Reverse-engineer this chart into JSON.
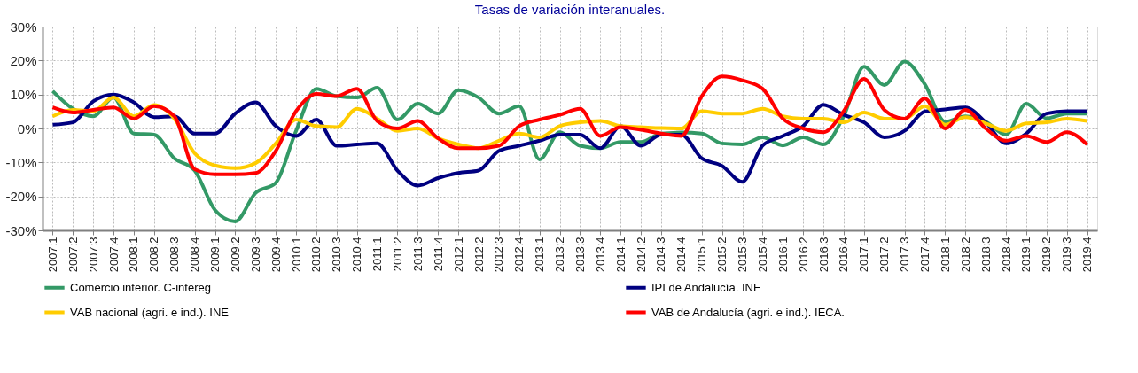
{
  "chart_data": {
    "type": "line",
    "title": "Tasas de variación interanuales.",
    "categories": [
      "2007:1",
      "2007:2",
      "2007:3",
      "2007:4",
      "2008:1",
      "2008:2",
      "2008:3",
      "2008:4",
      "2009:1",
      "2009:2",
      "2009:3",
      "2009:4",
      "2010:1",
      "2010:2",
      "2010:3",
      "2010:4",
      "2011:1",
      "2011:2",
      "2011:3",
      "2011:4",
      "2012:1",
      "2012:2",
      "2012:3",
      "2012:4",
      "2013:1",
      "2013:2",
      "2013:3",
      "2013:4",
      "2014:1",
      "2014:2",
      "2014:3",
      "2014:4",
      "2015:1",
      "2015:2",
      "2015:3",
      "2015:4",
      "2016:1",
      "2016:2",
      "2016:3",
      "2016:4",
      "2017:1",
      "2017:2",
      "2017:3",
      "2017:4",
      "2018:1",
      "2018:2",
      "2018:3",
      "2018:4",
      "2019:1",
      "2019:2",
      "2019:3",
      "2019:4"
    ],
    "series": [
      {
        "name": "Comercio interior. C-intereg",
        "color": "#339966",
        "values": [
          11,
          5.8,
          3.6,
          9.1,
          -1.5,
          -1.8,
          -8.8,
          -12.4,
          -24,
          -27.4,
          -19,
          -16,
          -0.7,
          11.7,
          9.5,
          9.1,
          12,
          2.6,
          7.3,
          4.4,
          11.3,
          9.1,
          4.4,
          6.6,
          -9.1,
          -1.1,
          -5.1,
          -5.8,
          -4,
          -4,
          -1.5,
          -1.2,
          -1.5,
          -4.4,
          -4.7,
          -2.6,
          -5,
          -2.6,
          -4.7,
          3.6,
          18.2,
          12.8,
          19.7,
          13,
          2,
          3.6,
          2,
          -1.8,
          7.3,
          3,
          4.4,
          4.4
        ]
      },
      {
        "name": "IPI de Andalucía. INE",
        "color": "#000080",
        "values": [
          1.1,
          1.8,
          8,
          10,
          7.7,
          3.3,
          3.6,
          -1.5,
          -1.5,
          4.4,
          7.7,
          0.7,
          -2.2,
          2.6,
          -5.1,
          -4.7,
          -4.4,
          -12.4,
          -16.8,
          -14.6,
          -13.1,
          -12.4,
          -6.6,
          -5.1,
          -3.6,
          -1.8,
          -1.8,
          -5.8,
          0.7,
          -5.1,
          -1.8,
          -1.8,
          -8.8,
          -11,
          -15.7,
          -5,
          -2.2,
          0.7,
          7,
          4,
          1.8,
          -2.6,
          -0.7,
          5,
          5.6,
          6.2,
          1.8,
          -4.4,
          -1.5,
          4.4,
          5.1,
          5.1
        ]
      },
      {
        "name": "VAB nacional (agri. e ind.). INE",
        "color": "#ffcc00",
        "values": [
          3.6,
          5.5,
          5.1,
          9.1,
          3.6,
          6.9,
          2.9,
          -7.3,
          -10.9,
          -11.7,
          -10.2,
          -4.4,
          2.6,
          0.7,
          0.4,
          5.8,
          2.9,
          -0.7,
          0,
          -2.9,
          -4.7,
          -5.8,
          -3.6,
          -1.5,
          -2.6,
          0.7,
          1.8,
          2.2,
          0.7,
          0.4,
          0.1,
          0,
          5.1,
          4.4,
          4.4,
          5.8,
          3.6,
          2.9,
          2.9,
          1.8,
          4.7,
          2.9,
          2.9,
          6.6,
          1.1,
          3.3,
          1.5,
          -0.7,
          1.5,
          1.8,
          2.9,
          2.2
        ]
      },
      {
        "name": "VAB de Andalucía (agri. e ind.). IECA.",
        "color": "#ff0000",
        "values": [
          6.2,
          4.7,
          5.5,
          6.2,
          2.9,
          6.6,
          3.6,
          -12,
          -13.5,
          -13.5,
          -13.1,
          -6.6,
          5.1,
          10.2,
          9.5,
          11.7,
          2.2,
          0,
          2.2,
          -2.9,
          -5.8,
          -5.8,
          -5.1,
          0.7,
          2.6,
          4,
          5.8,
          -2.2,
          0.4,
          -0.4,
          -1.5,
          -2.2,
          9.5,
          15.3,
          14.2,
          11.7,
          2.9,
          0,
          -1.1,
          5.1,
          14.6,
          5.5,
          2.9,
          8.8,
          0,
          5.5,
          0,
          -3.6,
          -2.2,
          -4,
          -1.1,
          -4.7
        ]
      }
    ],
    "ylim": [
      -30,
      30
    ],
    "yticks": [
      {
        "value": -30,
        "label": "-30%"
      },
      {
        "value": -20,
        "label": "-20%"
      },
      {
        "value": -10,
        "label": "-10%"
      },
      {
        "value": 0,
        "label": "0%"
      },
      {
        "value": 10,
        "label": "10%"
      },
      {
        "value": 20,
        "label": "20%"
      },
      {
        "value": 30,
        "label": "30%"
      }
    ],
    "grid": true,
    "legend": "bottom",
    "marker": "none",
    "line_style": "solid"
  }
}
